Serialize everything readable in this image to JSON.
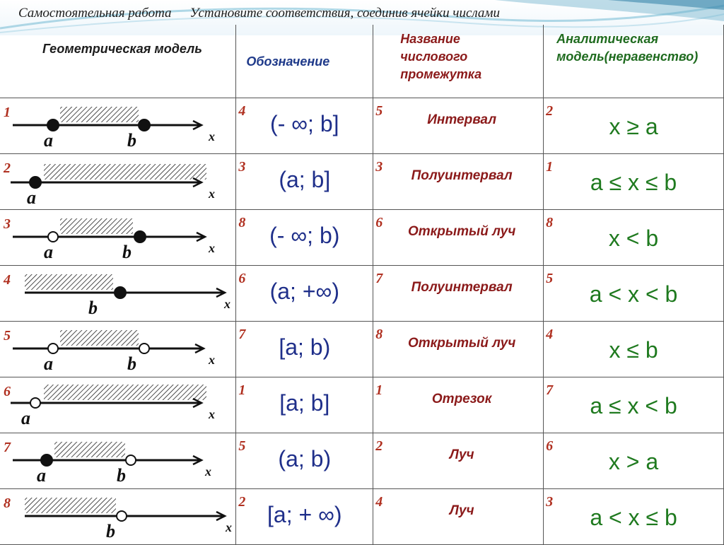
{
  "title": {
    "part1": "Самостоятельная работа",
    "part2": "Установите соответствия, соединив ячейки числами"
  },
  "headers": {
    "geometric": "Геометрическая модель",
    "notation": "Обозначение",
    "interval_name": "Название числового промежутка",
    "analytic": "Аналитическая модель(неравенство)"
  },
  "geometric": [
    {
      "num": "1",
      "labels": [
        "a",
        "b"
      ],
      "axis": "x"
    },
    {
      "num": "2",
      "labels": [
        "a"
      ],
      "axis": "x"
    },
    {
      "num": "3",
      "labels": [
        "a",
        "b"
      ],
      "axis": "x"
    },
    {
      "num": "4",
      "labels": [
        "b"
      ],
      "axis": "x"
    },
    {
      "num": "5",
      "labels": [
        "a",
        "b"
      ],
      "axis": "x"
    },
    {
      "num": "6",
      "labels": [
        "a"
      ],
      "axis": "x"
    },
    {
      "num": "7",
      "labels": [
        "a",
        "b"
      ],
      "axis": "x"
    },
    {
      "num": "8",
      "labels": [
        "b"
      ],
      "axis": "x"
    }
  ],
  "notations": [
    {
      "num": "4",
      "text": "(- ∞; b]"
    },
    {
      "num": "3",
      "text": "(a; b]"
    },
    {
      "num": "8",
      "text": "(- ∞; b)"
    },
    {
      "num": "6",
      "text": "(a; +∞)"
    },
    {
      "num": "7",
      "text": "[a; b)"
    },
    {
      "num": "1",
      "text": "[a; b]"
    },
    {
      "num": "5",
      "text": "(a; b)"
    },
    {
      "num": "2",
      "text": "[a; + ∞)"
    }
  ],
  "names": [
    {
      "num": "5",
      "text": "Интервал"
    },
    {
      "num": "3",
      "text": "Полуинтервал"
    },
    {
      "num": "6",
      "text": "Открытый луч"
    },
    {
      "num": "7",
      "text": "Полуинтервал"
    },
    {
      "num": "8",
      "text": "Открытый луч"
    },
    {
      "num": "1",
      "text": "Отрезок"
    },
    {
      "num": "2",
      "text": "Луч"
    },
    {
      "num": "4",
      "text": "Луч"
    }
  ],
  "analytic": [
    {
      "num": "2",
      "text": "x ≥ a"
    },
    {
      "num": "1",
      "text": "a ≤ x ≤ b"
    },
    {
      "num": "8",
      "text": "x < b"
    },
    {
      "num": "5",
      "text": "a < x < b"
    },
    {
      "num": "4",
      "text": "x ≤ b"
    },
    {
      "num": "7",
      "text": "a ≤ x < b"
    },
    {
      "num": "6",
      "text": "x > a"
    },
    {
      "num": "3",
      "text": "a < x ≤ b"
    }
  ],
  "colors": {
    "number": "#b03020",
    "notation": "#1f2f8a",
    "name": "#8b1a1a",
    "analytic": "#1f7a1f",
    "grid": "#555555"
  }
}
